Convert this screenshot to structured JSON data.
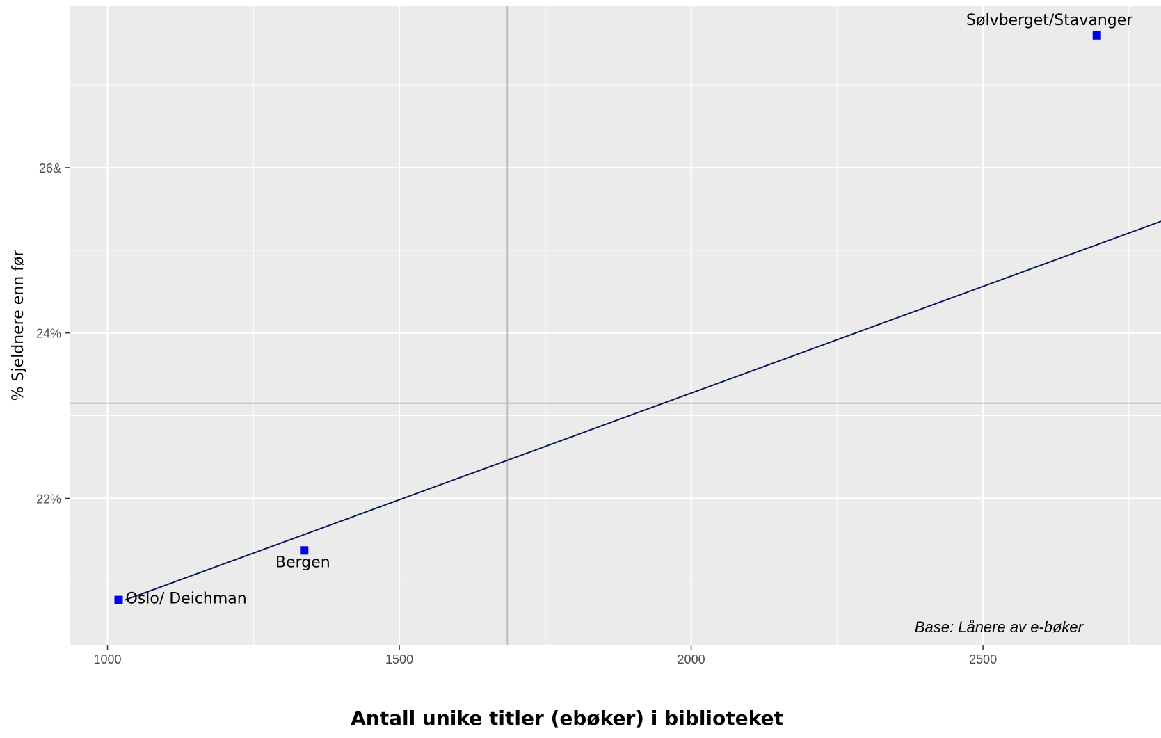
{
  "chart_data": {
    "type": "scatter",
    "xlabel": "Antall unike titler (ebøker) i biblioteket",
    "ylabel": "% Sjeldnere enn før",
    "caption": "Base: Lånere av e-bøker",
    "xlim": [
      935,
      2805
    ],
    "ylim": [
      20.22,
      27.96
    ],
    "x_ticks": [
      {
        "value": 1000,
        "label": "1000"
      },
      {
        "value": 1500,
        "label": "1500"
      },
      {
        "value": 2000,
        "label": "2000"
      },
      {
        "value": 2500,
        "label": "2500"
      }
    ],
    "y_ticks": [
      {
        "value": 22,
        "label": "22%"
      },
      {
        "value": 24,
        "label": "24%"
      },
      {
        "value": 26,
        "label": "26&"
      }
    ],
    "x_grid_major": [
      1000,
      1500,
      2000,
      2500
    ],
    "x_grid_minor": [
      1250,
      1750,
      2250,
      2750
    ],
    "y_grid_major": [
      22,
      24,
      26
    ],
    "y_grid_minor": [
      21,
      23,
      25,
      27
    ],
    "points": [
      {
        "label": "Oslo/ Deichman",
        "x": 1019,
        "y": 20.77
      },
      {
        "label": "Bergen",
        "x": 1337,
        "y": 21.37
      },
      {
        "label": "Sølvberget/Stavanger",
        "x": 2695,
        "y": 27.6
      }
    ],
    "trend_line": {
      "x": [
        1030,
        2805
      ],
      "y": [
        20.77,
        25.35
      ]
    },
    "reference_lines": {
      "vline_x": 1685,
      "hline_y": 23.15
    },
    "colors": {
      "panel": "#ebebeb",
      "grid": "#ffffff",
      "point": "#0000ee",
      "trend": "#0a1a5c",
      "reference": "#bdbdbd"
    }
  }
}
